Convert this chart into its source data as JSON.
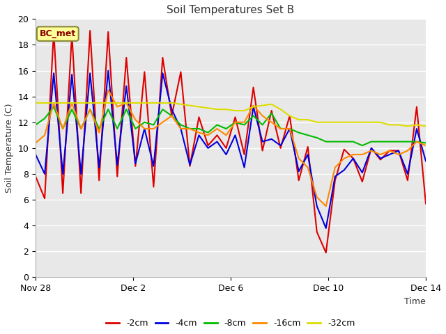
{
  "title": "Soil Temperatures Set B",
  "xlabel": "Time",
  "ylabel": "Soil Temperature (C)",
  "ylim": [
    0,
    20
  ],
  "yticks": [
    0,
    2,
    4,
    6,
    8,
    10,
    12,
    14,
    16,
    18,
    20
  ],
  "annotation_text": "BC_met",
  "annotation_box_facecolor": "#ffff99",
  "annotation_box_edgecolor": "#888833",
  "fig_bg_color": "#ffffff",
  "plot_bg_color": "#e8e8e8",
  "series_colors": {
    "-2cm": "#dd0000",
    "-4cm": "#0000dd",
    "-8cm": "#00bb00",
    "-16cm": "#ff8800",
    "-32cm": "#dddd00"
  },
  "series_labels": [
    "-2cm",
    "-4cm",
    "-8cm",
    "-16cm",
    "-32cm"
  ],
  "x_tick_labels": [
    "Nov 28",
    "Dec 2",
    "Dec 6",
    "Dec 10",
    "Dec 14"
  ],
  "x_tick_positions": [
    0,
    4,
    8,
    12,
    16
  ],
  "data_2cm": [
    7.8,
    6.1,
    19.0,
    6.5,
    18.8,
    6.5,
    19.1,
    7.5,
    19.0,
    7.8,
    17.0,
    8.6,
    15.9,
    7.0,
    17.0,
    12.5,
    15.9,
    8.6,
    12.4,
    10.2,
    11.0,
    10.0,
    12.4,
    9.5,
    14.7,
    9.8,
    12.9,
    10.0,
    12.5,
    7.5,
    10.1,
    3.5,
    1.9,
    7.5,
    9.9,
    9.2,
    7.4,
    10.0,
    9.1,
    9.8,
    9.8,
    7.5,
    13.2,
    5.7
  ],
  "data_4cm": [
    9.5,
    8.0,
    15.8,
    8.0,
    15.7,
    8.0,
    15.8,
    8.5,
    16.0,
    8.7,
    14.8,
    8.8,
    11.5,
    8.6,
    15.8,
    13.0,
    11.5,
    8.7,
    11.0,
    10.0,
    10.5,
    9.5,
    11.0,
    8.5,
    13.2,
    10.5,
    10.7,
    10.2,
    11.5,
    8.2,
    9.5,
    5.5,
    3.8,
    7.8,
    8.3,
    9.2,
    8.1,
    10.0,
    9.2,
    9.5,
    9.8,
    8.0,
    11.5,
    9.0
  ],
  "data_8cm": [
    11.8,
    12.3,
    13.2,
    11.5,
    13.0,
    11.5,
    13.0,
    11.5,
    13.0,
    11.5,
    13.0,
    11.5,
    12.0,
    11.8,
    13.0,
    12.5,
    11.8,
    11.5,
    11.5,
    11.2,
    11.8,
    11.5,
    12.0,
    11.8,
    12.5,
    11.8,
    12.7,
    11.5,
    11.5,
    11.2,
    11.0,
    10.8,
    10.5,
    10.5,
    10.5,
    10.5,
    10.2,
    10.5,
    10.5,
    10.5,
    10.5,
    10.5,
    10.5,
    10.4
  ],
  "data_16cm": [
    10.4,
    11.0,
    13.5,
    11.5,
    13.5,
    11.5,
    13.0,
    11.2,
    14.5,
    13.2,
    13.5,
    12.2,
    11.5,
    11.5,
    12.0,
    12.5,
    11.5,
    11.5,
    11.2,
    11.0,
    11.5,
    11.0,
    12.0,
    12.0,
    13.3,
    12.5,
    12.0,
    11.5,
    11.5,
    9.2,
    8.5,
    6.2,
    5.5,
    8.5,
    9.2,
    9.5,
    9.5,
    9.8,
    9.5,
    9.8,
    9.5,
    9.8,
    10.5,
    10.2
  ],
  "data_32cm": [
    13.5,
    13.5,
    13.5,
    13.5,
    13.5,
    13.5,
    13.5,
    13.5,
    13.5,
    13.5,
    13.5,
    13.5,
    13.5,
    13.5,
    13.5,
    13.5,
    13.4,
    13.3,
    13.2,
    13.1,
    13.0,
    13.0,
    12.9,
    12.9,
    13.2,
    13.3,
    13.4,
    13.0,
    12.5,
    12.2,
    12.2,
    12.0,
    12.0,
    12.0,
    12.0,
    12.0,
    12.0,
    12.0,
    12.0,
    11.8,
    11.8,
    11.7,
    11.8,
    11.7
  ]
}
